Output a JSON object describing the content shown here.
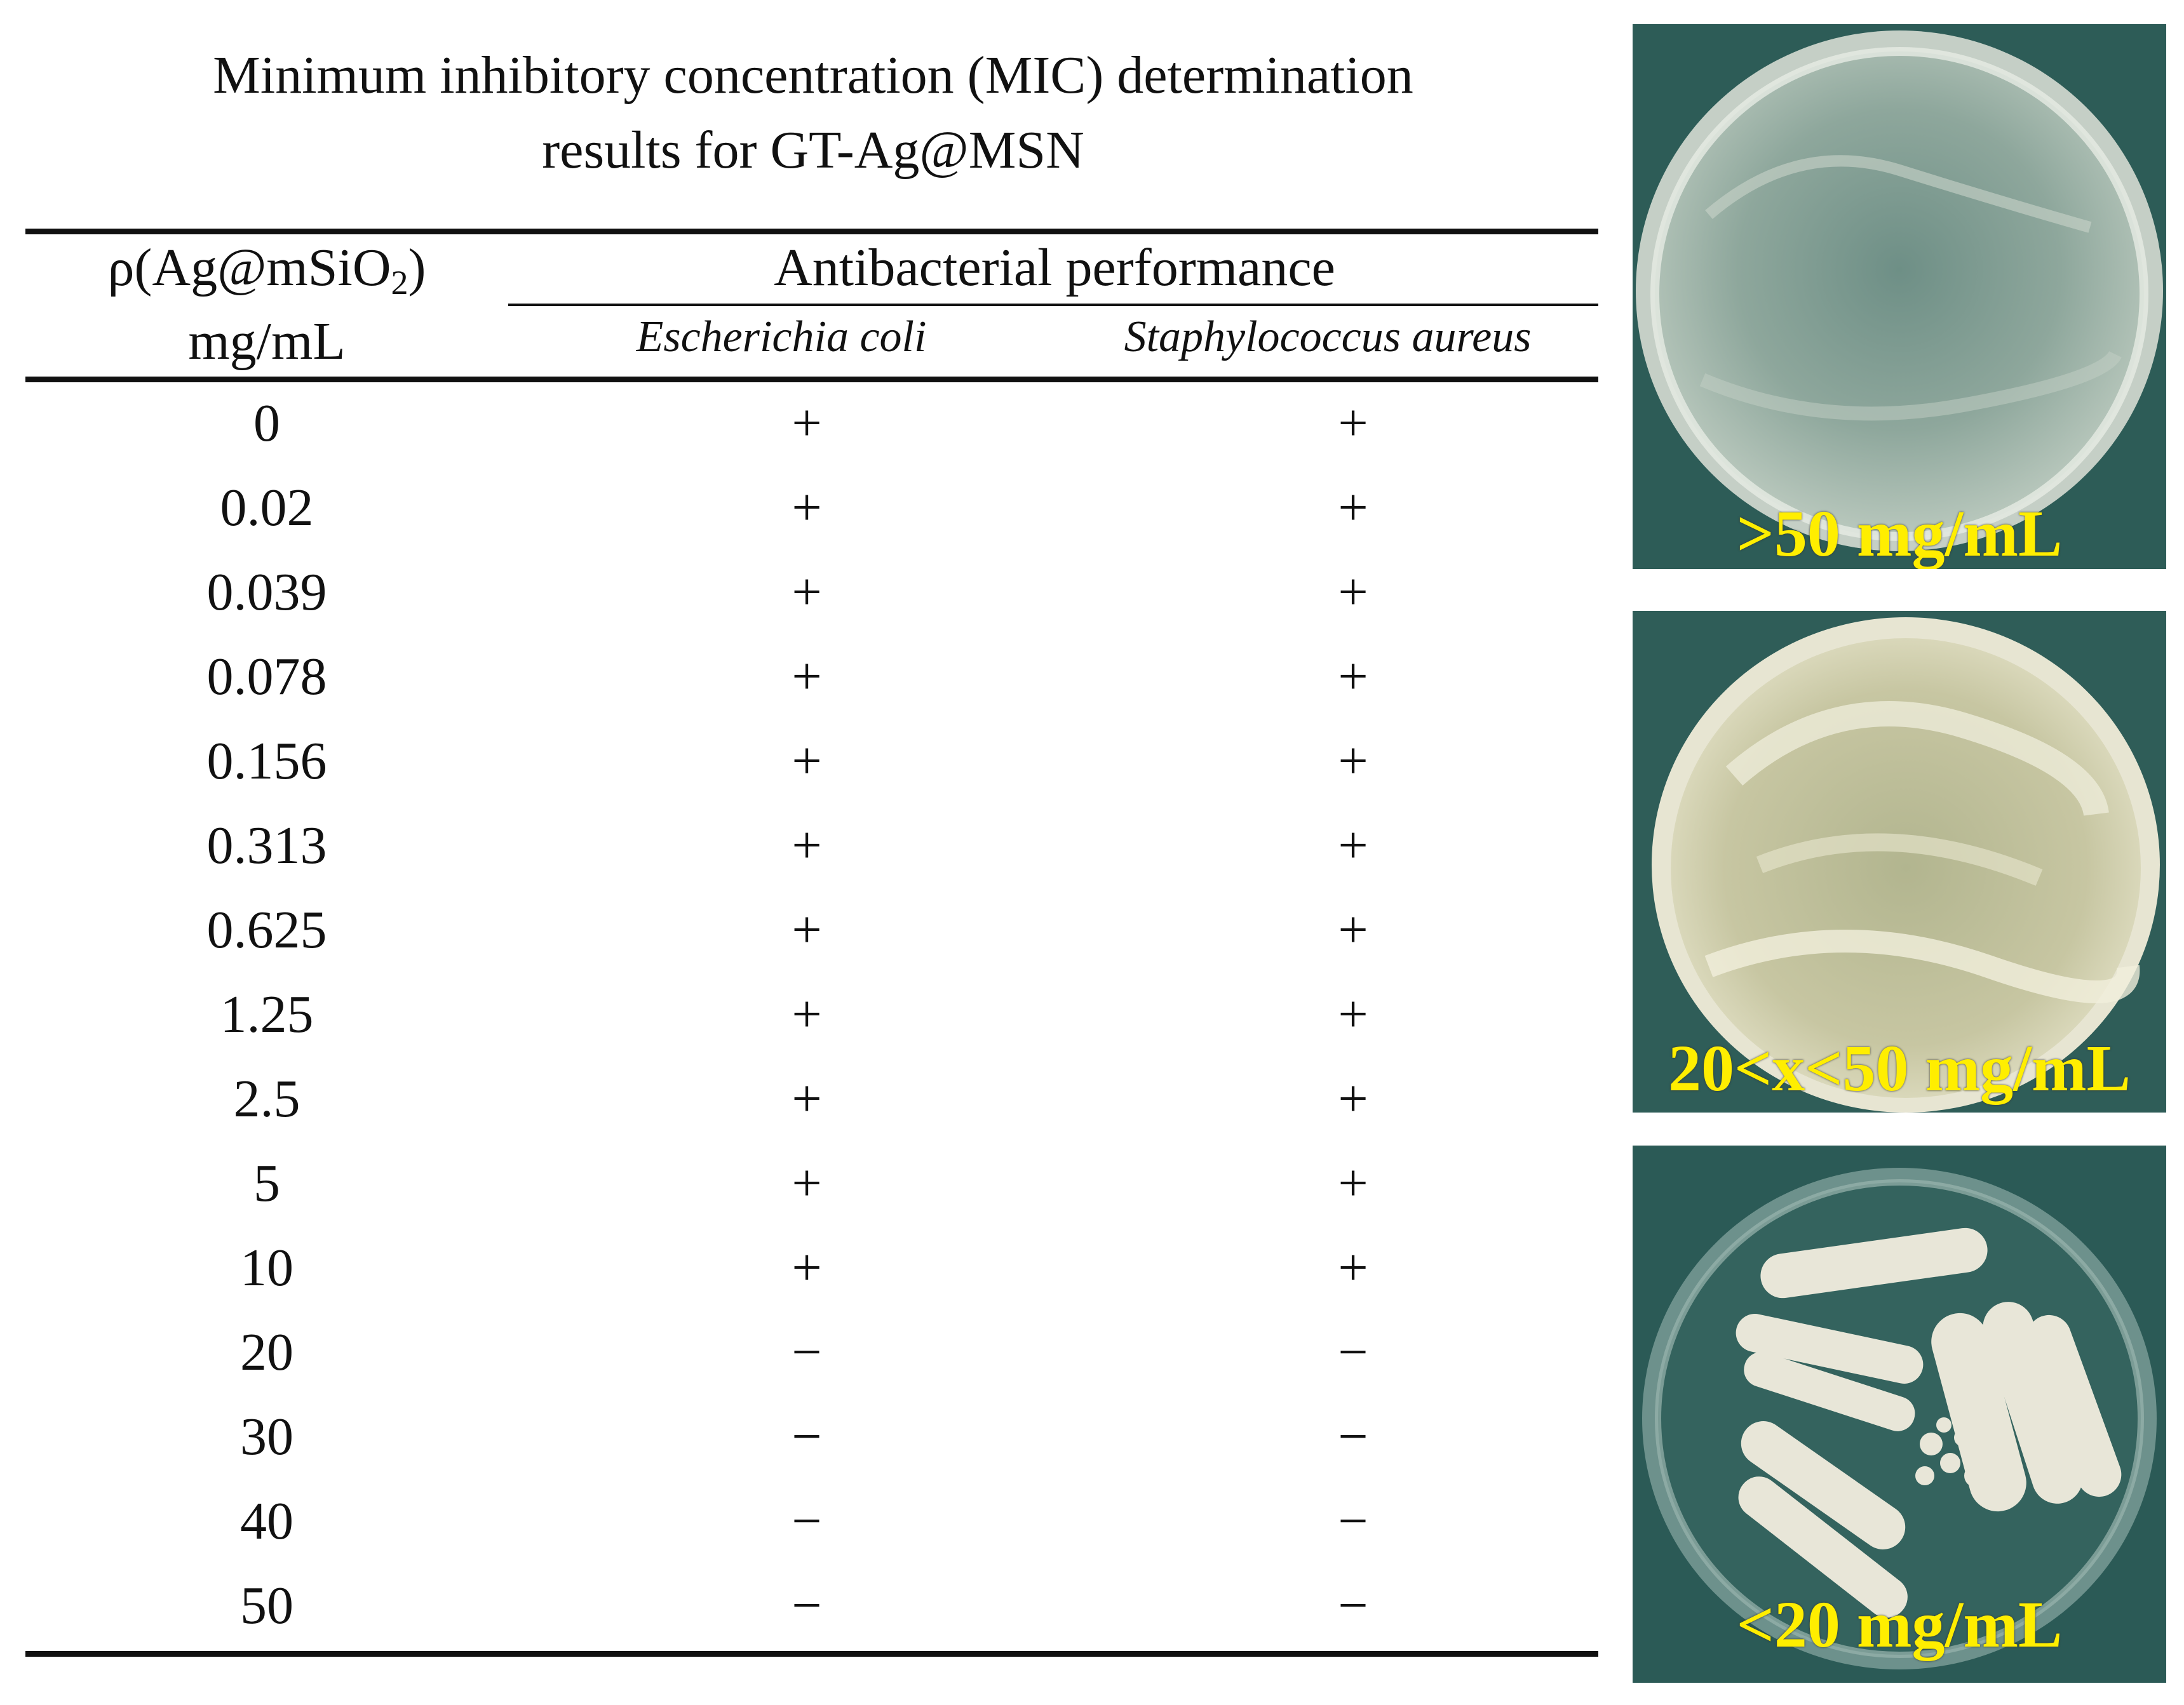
{
  "title_line1": "Minimum inhibitory concentration (MIC) determination",
  "title_line2": "results for GT-Ag@MSN",
  "table": {
    "col0_header_prefix": "ρ(Ag@mSiO",
    "col0_header_sub": "2",
    "col0_header_suffix": ")",
    "col0_header_unit": "mg/mL",
    "group_header": "Antibacterial performance",
    "species": [
      "Escherichia coli",
      "Staphylococcus aureus"
    ],
    "rows": [
      {
        "conc": "0",
        "ecoli": "+",
        "saureus": "+"
      },
      {
        "conc": "0.02",
        "ecoli": "+",
        "saureus": "+"
      },
      {
        "conc": "0.039",
        "ecoli": "+",
        "saureus": "+"
      },
      {
        "conc": "0.078",
        "ecoli": "+",
        "saureus": "+"
      },
      {
        "conc": "0.156",
        "ecoli": "+",
        "saureus": "+"
      },
      {
        "conc": "0.313",
        "ecoli": "+",
        "saureus": "+"
      },
      {
        "conc": "0.625",
        "ecoli": "+",
        "saureus": "+"
      },
      {
        "conc": "1.25",
        "ecoli": "+",
        "saureus": "+"
      },
      {
        "conc": "2.5",
        "ecoli": "+",
        "saureus": "+"
      },
      {
        "conc": "5",
        "ecoli": "+",
        "saureus": "+"
      },
      {
        "conc": "10",
        "ecoli": "+",
        "saureus": "+"
      },
      {
        "conc": "20",
        "ecoli": "−",
        "saureus": "−"
      },
      {
        "conc": "30",
        "ecoli": "−",
        "saureus": "−"
      },
      {
        "conc": "40",
        "ecoli": "−",
        "saureus": "−"
      },
      {
        "conc": "50",
        "ecoli": "−",
        "saureus": "−"
      }
    ]
  },
  "photos": [
    {
      "label": ">50 mg/mL"
    },
    {
      "label": "20<x<50 mg/mL"
    },
    {
      "label": "<20 mg/mL"
    }
  ],
  "colors": {
    "label": "#ffee00",
    "background": "#2f5a56"
  }
}
